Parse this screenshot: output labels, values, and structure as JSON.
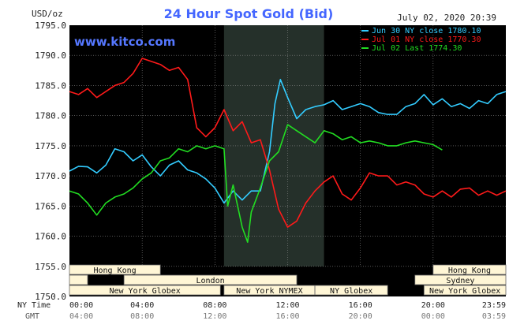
{
  "chart_data": {
    "type": "line",
    "title": "24 Hour Spot Gold (Bid)",
    "units": "USD/oz",
    "date_stamp": "July 02, 2020 20:39",
    "watermark": "www.kitco.com",
    "ylim": [
      1750,
      1795
    ],
    "y_ticks": [
      "1795.0",
      "1790.0",
      "1785.0",
      "1780.0",
      "1775.0",
      "1770.0",
      "1765.0",
      "1760.0",
      "1755.0",
      "1750.0"
    ],
    "x_range_hours": [
      0,
      24
    ],
    "x_ticks": [
      {
        "ny": "00:00",
        "gmt": "04:00"
      },
      {
        "ny": "04:00",
        "gmt": "08:00"
      },
      {
        "ny": "08:00",
        "gmt": "12:00"
      },
      {
        "ny": "12:00",
        "gmt": "16:00"
      },
      {
        "ny": "16:00",
        "gmt": "20:00"
      },
      {
        "ny": "20:00",
        "gmt": "00:00"
      },
      {
        "ny": "23:59",
        "gmt": "03:59"
      }
    ],
    "x_row_labels": {
      "ny": "NY Time",
      "gmt": "GMT"
    },
    "highlight_hours": [
      8.5,
      14
    ],
    "legend": [
      {
        "text": "Jun 30 NY close 1780.10",
        "color": "#33ccff"
      },
      {
        "text": "Jul 01 NY close 1770.30",
        "color": "#ff1a1a"
      },
      {
        "text": "Jul 02 Last 1774.30",
        "color": "#22dd22"
      }
    ],
    "series": [
      {
        "color": "#33ccff",
        "points": [
          [
            0,
            1770.8
          ],
          [
            0.5,
            1771.6
          ],
          [
            1,
            1771.5
          ],
          [
            1.5,
            1770.5
          ],
          [
            2,
            1771.8
          ],
          [
            2.5,
            1774.5
          ],
          [
            3,
            1774.0
          ],
          [
            3.5,
            1772.5
          ],
          [
            4,
            1773.5
          ],
          [
            4.5,
            1771.5
          ],
          [
            5,
            1770.0
          ],
          [
            5.5,
            1771.8
          ],
          [
            6,
            1772.5
          ],
          [
            6.5,
            1771.0
          ],
          [
            7,
            1770.5
          ],
          [
            7.5,
            1769.5
          ],
          [
            8,
            1768.0
          ],
          [
            8.5,
            1765.5
          ],
          [
            9,
            1767.5
          ],
          [
            9.5,
            1766.0
          ],
          [
            10,
            1767.5
          ],
          [
            10.5,
            1767.5
          ],
          [
            11,
            1774.0
          ],
          [
            11.3,
            1782.0
          ],
          [
            11.6,
            1786.0
          ],
          [
            12,
            1783.0
          ],
          [
            12.5,
            1779.5
          ],
          [
            13,
            1781.0
          ],
          [
            13.5,
            1781.5
          ],
          [
            14,
            1781.8
          ],
          [
            14.5,
            1782.5
          ],
          [
            15,
            1781.0
          ],
          [
            15.5,
            1781.5
          ],
          [
            16,
            1782.0
          ],
          [
            16.5,
            1781.5
          ],
          [
            17,
            1780.5
          ],
          [
            17.5,
            1780.2
          ],
          [
            18,
            1780.2
          ],
          [
            18.5,
            1781.5
          ],
          [
            19,
            1782.0
          ],
          [
            19.5,
            1783.5
          ],
          [
            20,
            1781.8
          ],
          [
            20.5,
            1782.8
          ],
          [
            21,
            1781.5
          ],
          [
            21.5,
            1782.0
          ],
          [
            22,
            1781.2
          ],
          [
            22.5,
            1782.5
          ],
          [
            23,
            1782.0
          ],
          [
            23.5,
            1783.5
          ],
          [
            24,
            1784.0
          ]
        ]
      },
      {
        "color": "#ff1a1a",
        "points": [
          [
            0,
            1784.0
          ],
          [
            0.5,
            1783.5
          ],
          [
            1,
            1784.5
          ],
          [
            1.5,
            1783.0
          ],
          [
            2,
            1784.0
          ],
          [
            2.5,
            1785.0
          ],
          [
            3,
            1785.5
          ],
          [
            3.5,
            1787.0
          ],
          [
            4,
            1789.5
          ],
          [
            4.5,
            1789.0
          ],
          [
            5,
            1788.5
          ],
          [
            5.5,
            1787.5
          ],
          [
            6,
            1788.0
          ],
          [
            6.5,
            1786.0
          ],
          [
            7,
            1778.0
          ],
          [
            7.5,
            1776.5
          ],
          [
            8,
            1778.0
          ],
          [
            8.5,
            1781.0
          ],
          [
            9,
            1777.5
          ],
          [
            9.5,
            1779.0
          ],
          [
            10,
            1775.5
          ],
          [
            10.5,
            1776.0
          ],
          [
            11,
            1771.0
          ],
          [
            11.5,
            1764.5
          ],
          [
            12,
            1761.5
          ],
          [
            12.5,
            1762.5
          ],
          [
            13,
            1765.5
          ],
          [
            13.5,
            1767.5
          ],
          [
            14,
            1769.0
          ],
          [
            14.5,
            1770.0
          ],
          [
            15,
            1767.0
          ],
          [
            15.5,
            1766.0
          ],
          [
            16,
            1768.0
          ],
          [
            16.5,
            1770.5
          ],
          [
            17,
            1770.0
          ],
          [
            17.5,
            1770.0
          ],
          [
            18,
            1768.5
          ],
          [
            18.5,
            1769.0
          ],
          [
            19,
            1768.5
          ],
          [
            19.5,
            1767.0
          ],
          [
            20,
            1766.5
          ],
          [
            20.5,
            1767.5
          ],
          [
            21,
            1766.5
          ],
          [
            21.5,
            1767.8
          ],
          [
            22,
            1768.0
          ],
          [
            22.5,
            1766.8
          ],
          [
            23,
            1767.5
          ],
          [
            23.5,
            1766.8
          ],
          [
            24,
            1767.5
          ]
        ]
      },
      {
        "color": "#22dd22",
        "points": [
          [
            0,
            1767.5
          ],
          [
            0.5,
            1767.0
          ],
          [
            1,
            1765.5
          ],
          [
            1.5,
            1763.5
          ],
          [
            2,
            1765.5
          ],
          [
            2.5,
            1766.5
          ],
          [
            3,
            1767.0
          ],
          [
            3.5,
            1768.0
          ],
          [
            4,
            1769.5
          ],
          [
            4.5,
            1770.5
          ],
          [
            5,
            1772.5
          ],
          [
            5.5,
            1773.0
          ],
          [
            6,
            1774.5
          ],
          [
            6.5,
            1774.0
          ],
          [
            7,
            1775.0
          ],
          [
            7.5,
            1774.5
          ],
          [
            8,
            1775.0
          ],
          [
            8.5,
            1774.5
          ],
          [
            8.7,
            1765.0
          ],
          [
            9,
            1768.5
          ],
          [
            9.5,
            1761.5
          ],
          [
            9.8,
            1759.0
          ],
          [
            10,
            1764.0
          ],
          [
            10.5,
            1768.0
          ],
          [
            11,
            1772.5
          ],
          [
            11.5,
            1774.0
          ],
          [
            12,
            1778.5
          ],
          [
            12.5,
            1777.5
          ],
          [
            13,
            1776.5
          ],
          [
            13.5,
            1775.5
          ],
          [
            14,
            1777.5
          ],
          [
            14.5,
            1777.0
          ],
          [
            15,
            1776.0
          ],
          [
            15.5,
            1776.5
          ],
          [
            16,
            1775.5
          ],
          [
            16.5,
            1775.8
          ],
          [
            17,
            1775.5
          ],
          [
            17.5,
            1775.0
          ],
          [
            18,
            1775.0
          ],
          [
            18.5,
            1775.5
          ],
          [
            19,
            1775.8
          ],
          [
            19.5,
            1775.5
          ],
          [
            20,
            1775.2
          ],
          [
            20.5,
            1774.3
          ]
        ]
      }
    ],
    "session_rows": [
      [
        {
          "label": "Hong Kong",
          "start": 0,
          "end": 5
        },
        {
          "label": "Hong Kong",
          "start": 20,
          "end": 24
        }
      ],
      [
        {
          "label": "",
          "start": 0,
          "end": 1
        },
        {
          "label": "London",
          "start": 3,
          "end": 12.5
        },
        {
          "label": "Sydney",
          "start": 19,
          "end": 24
        }
      ],
      [
        {
          "label": "New York Globex",
          "start": 0,
          "end": 8.3
        },
        {
          "label": "New York NYMEX",
          "start": 8.5,
          "end": 13.5
        },
        {
          "label": "NY Globex",
          "start": 13.5,
          "end": 17.5
        },
        {
          "label": "New York Globex",
          "start": 19.5,
          "end": 24
        }
      ]
    ]
  }
}
